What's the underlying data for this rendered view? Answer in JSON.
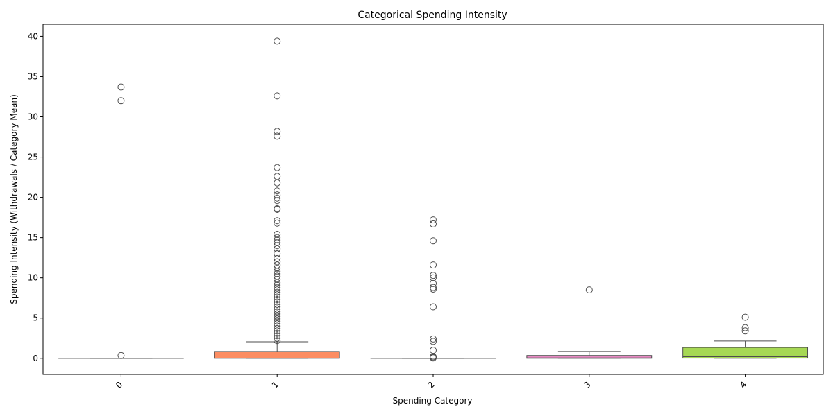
{
  "chart_data": {
    "type": "box",
    "title": "Categorical Spending Intensity",
    "xlabel": "Spending Category",
    "ylabel": "Spending Intensity (Withdrawals / Category Mean)",
    "ylim": [
      -2,
      41.5
    ],
    "yticks": [
      0,
      5,
      10,
      15,
      20,
      25,
      30,
      35,
      40
    ],
    "grid": false,
    "categories": [
      "0",
      "1",
      "2",
      "3",
      "4"
    ],
    "colors": {
      "0": "#66c2a5",
      "1": "#fc8d62",
      "2": "#8da0cb",
      "3": "#e78ac3",
      "4": "#a6d854"
    },
    "boxes": [
      {
        "category": "0",
        "q1": 0,
        "median": 0,
        "q3": 0,
        "whisker_low": 0,
        "whisker_high": 0,
        "outliers": [
          33.7,
          32.0,
          0.35
        ]
      },
      {
        "category": "1",
        "q1": 0,
        "median": 0.02,
        "q3": 0.85,
        "whisker_low": 0,
        "whisker_high": 2.05,
        "outliers": [
          39.4,
          32.6,
          28.2,
          27.6,
          23.7,
          22.6,
          21.8,
          20.8,
          20.3,
          19.9,
          19.6,
          18.6,
          18.5,
          17.1,
          16.8,
          15.4,
          15.0,
          14.7,
          14.4,
          14.0,
          13.6,
          13.0,
          12.4,
          12.0,
          11.6,
          11.2,
          10.8,
          10.5,
          10.2,
          9.8,
          9.4,
          9.1,
          8.8,
          8.5,
          8.2,
          7.9,
          7.6,
          7.3,
          7.0,
          6.7,
          6.4,
          6.1,
          5.8,
          5.5,
          5.2,
          4.9,
          4.6,
          4.3,
          4.0,
          3.7,
          3.4,
          3.1,
          2.8,
          2.5,
          2.2
        ]
      },
      {
        "category": "2",
        "q1": 0,
        "median": 0,
        "q3": 0,
        "whisker_low": 0,
        "whisker_high": 0,
        "outliers": [
          17.2,
          16.7,
          14.6,
          11.6,
          10.3,
          10.0,
          9.3,
          8.8,
          8.6,
          6.4,
          2.4,
          2.1,
          1.0,
          0.2,
          0.1,
          0.05
        ]
      },
      {
        "category": "3",
        "q1": 0,
        "median": 0.05,
        "q3": 0.35,
        "whisker_low": 0,
        "whisker_high": 0.85,
        "outliers": [
          8.5
        ]
      },
      {
        "category": "4",
        "q1": 0.02,
        "median": 0.2,
        "q3": 1.35,
        "whisker_low": 0,
        "whisker_high": 2.15,
        "outliers": [
          5.1,
          3.8,
          3.4
        ]
      }
    ]
  }
}
